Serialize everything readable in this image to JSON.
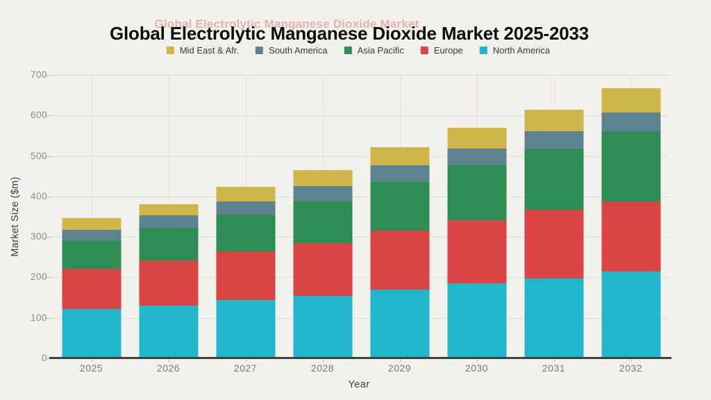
{
  "page": {
    "background_color": "#f2f1ec"
  },
  "watermark_title": {
    "text": "Global Electrolytic Manganese Dioxide Market",
    "color": "#e59d93"
  },
  "chart_title": {
    "text": "Global Electrolytic Manganese Dioxide Market 2025-2033",
    "color": "#0d0d0d"
  },
  "chart_data": {
    "type": "bar",
    "stacked": true,
    "title": "Global Electrolytic Manganese Dioxide Market 2025-2033",
    "xlabel": "Year",
    "ylabel": "Market Size ($m)",
    "categories": [
      "2025",
      "2026",
      "2027",
      "2028",
      "2029",
      "2030",
      "2031",
      "2032"
    ],
    "series": [
      {
        "name": "North America",
        "color": "#21b6c9",
        "values": [
          120,
          128,
          143,
          152,
          168,
          183,
          196,
          213
        ]
      },
      {
        "name": "Europe",
        "color": "#d94444",
        "values": [
          99,
          112,
          119,
          131,
          146,
          157,
          169,
          174
        ]
      },
      {
        "name": "Asia Pacific",
        "color": "#2e8c55",
        "values": [
          70,
          81,
          91,
          103,
          121,
          136,
          151,
          172
        ]
      },
      {
        "name": "South America",
        "color": "#5d8390",
        "values": [
          27,
          31,
          34,
          37,
          40,
          41,
          43,
          47
        ]
      },
      {
        "name": "Mid East & Afr.",
        "color": "#cfb64a",
        "values": [
          29,
          27,
          35,
          40,
          45,
          51,
          53,
          60
        ]
      }
    ],
    "totals": [
      345,
      379,
      422,
      463,
      520,
      568,
      612,
      666
    ],
    "legend_order": [
      "Mid East & Afr.",
      "South America",
      "Asia Pacific",
      "Europe",
      "North America"
    ],
    "legend_position": "top",
    "ylim": [
      0,
      700
    ],
    "yticks": [
      0,
      100,
      200,
      300,
      400,
      500,
      600,
      700
    ],
    "grid": true
  }
}
